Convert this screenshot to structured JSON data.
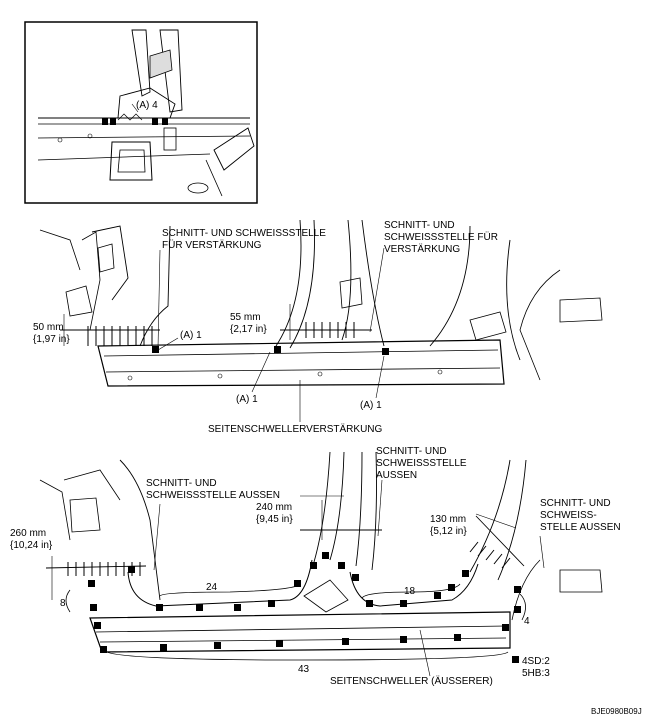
{
  "inset": {
    "callout": "(A) 4"
  },
  "middle": {
    "cut_weld_reinf_1": [
      "SCHNITT- UND SCHWEISSSTELLE",
      "FÜR VERSTÄRKUNG"
    ],
    "cut_weld_reinf_2": [
      "SCHNITT- UND",
      "SCHWEISSSTELLE FÜR",
      "VERSTÄRKUNG"
    ],
    "dim_50": [
      "50 mm",
      "{1,97 in}"
    ],
    "dim_55": [
      "55 mm",
      "{2,17 in}"
    ],
    "callout_a1_top": "(A) 1",
    "callout_a1_left": "(A) 1",
    "callout_a1_right": "(A) 1",
    "part_name": "SEITENSCHWELLERVERSTÄRKUNG"
  },
  "bottom": {
    "cut_weld_outer_1": [
      "SCHNITT- UND",
      "SCHWEISSSTELLE AUSSEN"
    ],
    "cut_weld_outer_2": [
      "SCHNITT- UND",
      "SCHWEISSSTELLE",
      "AUSSEN"
    ],
    "cut_weld_outer_3": [
      "SCHNITT- UND",
      "SCHWEISS-",
      "STELLE AUSSEN"
    ],
    "dim_260": [
      "260 mm",
      "{10,24 in}"
    ],
    "dim_240": [
      "240 mm",
      "{9,45 in}"
    ],
    "dim_130": [
      "130 mm",
      "{5,12 in}"
    ],
    "count_24": "24",
    "count_18": "18",
    "count_8": "8",
    "count_4": "4",
    "count_43": "43",
    "part_name": "SEITENSCHWELLER (ÄUSSERER)",
    "legend_line1": "4SD:2",
    "legend_line2": "5HB:3"
  },
  "figure_code": "BJE0980B09J"
}
